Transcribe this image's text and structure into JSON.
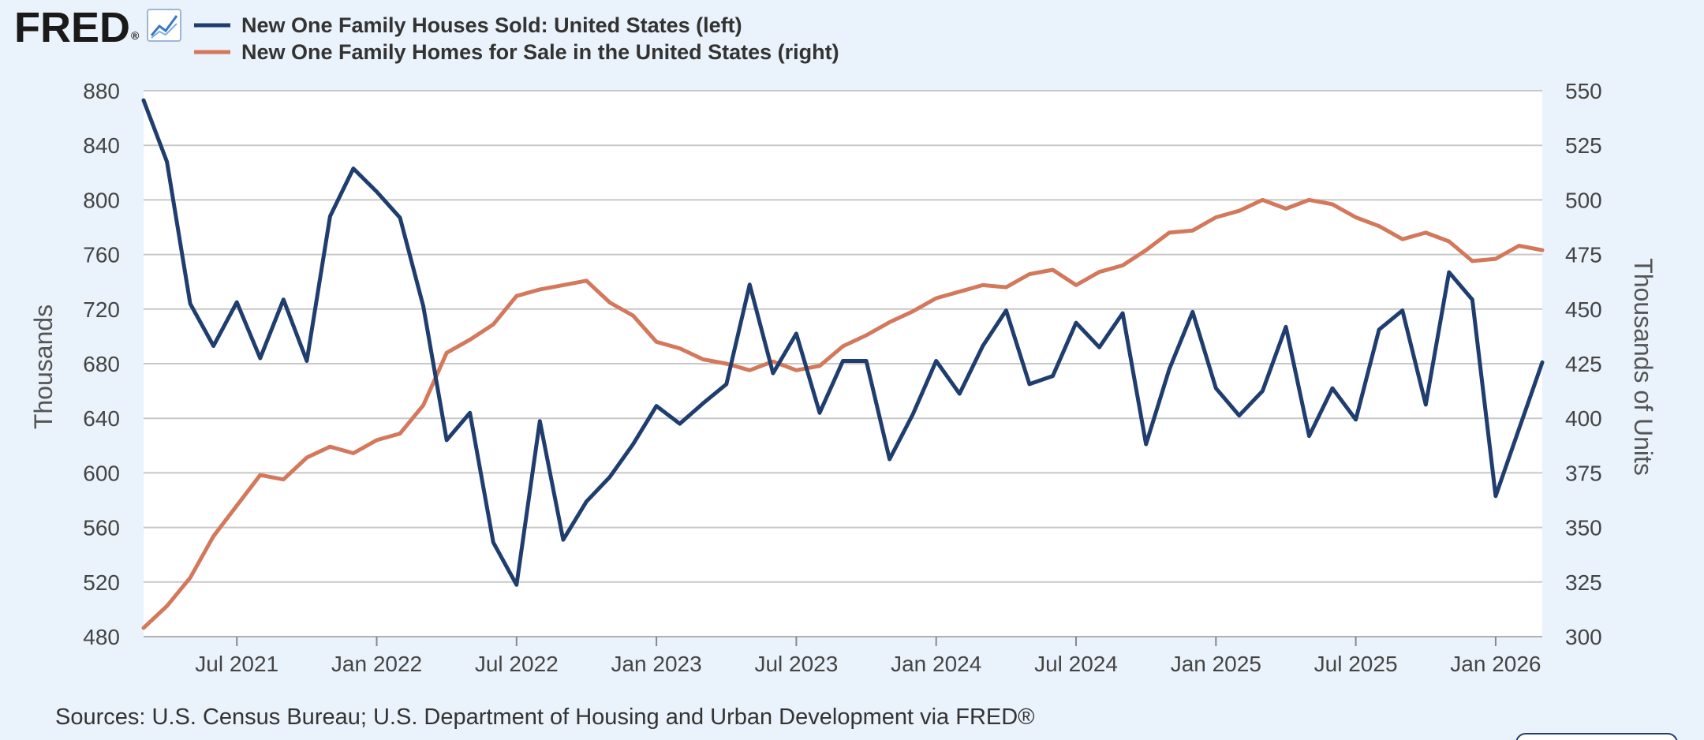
{
  "logo": {
    "text": "FRED",
    "registered": "®",
    "icon": "line-chart-icon"
  },
  "colors": {
    "background": "#eaf2fb",
    "plot": "#ffffff",
    "grid": "#c8c8c8",
    "series1": "#1f3d6e",
    "series2": "#d4785c"
  },
  "source_text": "Sources: U.S. Census Bureau; U.S. Department of Housing and Urban Development via FRED®",
  "chart_data": {
    "type": "line",
    "title": "",
    "legend_placement": "top-left",
    "grid": true,
    "x_start": "2021-03",
    "x_end": "2026-03",
    "x_tick_labels": [
      "Jul 2021",
      "Jan 2022",
      "Jul 2022",
      "Jan 2023",
      "Jul 2023",
      "Jan 2024",
      "Jul 2024",
      "Jan 2025",
      "Jul 2025",
      "Jan 2026"
    ],
    "x_ticks": [
      "2021-07",
      "2022-01",
      "2022-07",
      "2023-01",
      "2023-07",
      "2024-01",
      "2024-07",
      "2025-01",
      "2025-07",
      "2026-01"
    ],
    "y_left": {
      "label": "Thousands",
      "range": [
        480,
        880
      ],
      "ticks": [
        480,
        520,
        560,
        600,
        640,
        680,
        720,
        760,
        800,
        840,
        880
      ]
    },
    "y_right": {
      "label": "Thousands of Units",
      "range": [
        300,
        550
      ],
      "ticks": [
        300,
        325,
        350,
        375,
        400,
        425,
        450,
        475,
        500,
        525,
        550
      ]
    },
    "series": [
      {
        "name": "New One Family Houses Sold: United States (left)",
        "axis": "left",
        "values": [
          {
            "x": "2021-03",
            "y": 873
          },
          {
            "x": "2021-04",
            "y": 828
          },
          {
            "x": "2021-05",
            "y": 724
          },
          {
            "x": "2021-06",
            "y": 693
          },
          {
            "x": "2021-07",
            "y": 725
          },
          {
            "x": "2021-08",
            "y": 684
          },
          {
            "x": "2021-09",
            "y": 727
          },
          {
            "x": "2021-10",
            "y": 682
          },
          {
            "x": "2021-11",
            "y": 788
          },
          {
            "x": "2021-12",
            "y": 823
          },
          {
            "x": "2022-01",
            "y": 806
          },
          {
            "x": "2022-02",
            "y": 787
          },
          {
            "x": "2022-03",
            "y": 722
          },
          {
            "x": "2022-04",
            "y": 624
          },
          {
            "x": "2022-05",
            "y": 644
          },
          {
            "x": "2022-06",
            "y": 549
          },
          {
            "x": "2022-07",
            "y": 518
          },
          {
            "x": "2022-08",
            "y": 638
          },
          {
            "x": "2022-09",
            "y": 551
          },
          {
            "x": "2022-10",
            "y": 579
          },
          {
            "x": "2022-11",
            "y": 597
          },
          {
            "x": "2022-12",
            "y": 621
          },
          {
            "x": "2023-01",
            "y": 649
          },
          {
            "x": "2023-02",
            "y": 636
          },
          {
            "x": "2023-03",
            "y": 651
          },
          {
            "x": "2023-04",
            "y": 665
          },
          {
            "x": "2023-05",
            "y": 738
          },
          {
            "x": "2023-06",
            "y": 673
          },
          {
            "x": "2023-07",
            "y": 702
          },
          {
            "x": "2023-08",
            "y": 644
          },
          {
            "x": "2023-09",
            "y": 682
          },
          {
            "x": "2023-10",
            "y": 682
          },
          {
            "x": "2023-11",
            "y": 610
          },
          {
            "x": "2023-12",
            "y": 643
          },
          {
            "x": "2024-01",
            "y": 682
          },
          {
            "x": "2024-02",
            "y": 658
          },
          {
            "x": "2024-03",
            "y": 693
          },
          {
            "x": "2024-04",
            "y": 719
          },
          {
            "x": "2024-05",
            "y": 665
          },
          {
            "x": "2024-06",
            "y": 671
          },
          {
            "x": "2024-07",
            "y": 710
          },
          {
            "x": "2024-08",
            "y": 692
          },
          {
            "x": "2024-09",
            "y": 717
          },
          {
            "x": "2024-10",
            "y": 621
          },
          {
            "x": "2024-11",
            "y": 676
          },
          {
            "x": "2024-12",
            "y": 718
          },
          {
            "x": "2025-01",
            "y": 662
          },
          {
            "x": "2025-02",
            "y": 642
          },
          {
            "x": "2025-03",
            "y": 660
          },
          {
            "x": "2025-04",
            "y": 707
          },
          {
            "x": "2025-05",
            "y": 627
          },
          {
            "x": "2025-06",
            "y": 662
          },
          {
            "x": "2025-07",
            "y": 639
          },
          {
            "x": "2025-08",
            "y": 705
          },
          {
            "x": "2025-09",
            "y": 719
          },
          {
            "x": "2025-10",
            "y": 650
          },
          {
            "x": "2025-11",
            "y": 747
          },
          {
            "x": "2025-12",
            "y": 727
          },
          {
            "x": "2026-01",
            "y": 583
          },
          {
            "x": "2026-02",
            "y": 632
          },
          {
            "x": "2026-03",
            "y": 681
          }
        ]
      },
      {
        "name": "New One Family Homes for Sale in the United States (right)",
        "axis": "right",
        "values": [
          {
            "x": "2021-03",
            "y": 304
          },
          {
            "x": "2021-04",
            "y": 314
          },
          {
            "x": "2021-05",
            "y": 327
          },
          {
            "x": "2021-06",
            "y": 346
          },
          {
            "x": "2021-07",
            "y": 360
          },
          {
            "x": "2021-08",
            "y": 374
          },
          {
            "x": "2021-09",
            "y": 372
          },
          {
            "x": "2021-10",
            "y": 382
          },
          {
            "x": "2021-11",
            "y": 387
          },
          {
            "x": "2021-12",
            "y": 384
          },
          {
            "x": "2022-01",
            "y": 390
          },
          {
            "x": "2022-02",
            "y": 393
          },
          {
            "x": "2022-03",
            "y": 406
          },
          {
            "x": "2022-04",
            "y": 430
          },
          {
            "x": "2022-05",
            "y": 436
          },
          {
            "x": "2022-06",
            "y": 443
          },
          {
            "x": "2022-07",
            "y": 456
          },
          {
            "x": "2022-08",
            "y": 459
          },
          {
            "x": "2022-09",
            "y": 461
          },
          {
            "x": "2022-10",
            "y": 463
          },
          {
            "x": "2022-11",
            "y": 453
          },
          {
            "x": "2022-12",
            "y": 447
          },
          {
            "x": "2023-01",
            "y": 435
          },
          {
            "x": "2023-02",
            "y": 432
          },
          {
            "x": "2023-03",
            "y": 427
          },
          {
            "x": "2023-04",
            "y": 425
          },
          {
            "x": "2023-05",
            "y": 422
          },
          {
            "x": "2023-06",
            "y": 426
          },
          {
            "x": "2023-07",
            "y": 422
          },
          {
            "x": "2023-08",
            "y": 424
          },
          {
            "x": "2023-09",
            "y": 433
          },
          {
            "x": "2023-10",
            "y": 438
          },
          {
            "x": "2023-11",
            "y": 444
          },
          {
            "x": "2023-12",
            "y": 449
          },
          {
            "x": "2024-01",
            "y": 455
          },
          {
            "x": "2024-02",
            "y": 458
          },
          {
            "x": "2024-03",
            "y": 461
          },
          {
            "x": "2024-04",
            "y": 460
          },
          {
            "x": "2024-05",
            "y": 466
          },
          {
            "x": "2024-06",
            "y": 468
          },
          {
            "x": "2024-07",
            "y": 461
          },
          {
            "x": "2024-08",
            "y": 467
          },
          {
            "x": "2024-09",
            "y": 470
          },
          {
            "x": "2024-10",
            "y": 477
          },
          {
            "x": "2024-11",
            "y": 485
          },
          {
            "x": "2024-12",
            "y": 486
          },
          {
            "x": "2025-01",
            "y": 492
          },
          {
            "x": "2025-02",
            "y": 495
          },
          {
            "x": "2025-03",
            "y": 500
          },
          {
            "x": "2025-04",
            "y": 496
          },
          {
            "x": "2025-05",
            "y": 500
          },
          {
            "x": "2025-06",
            "y": 498
          },
          {
            "x": "2025-07",
            "y": 492
          },
          {
            "x": "2025-08",
            "y": 488
          },
          {
            "x": "2025-09",
            "y": 482
          },
          {
            "x": "2025-10",
            "y": 485
          },
          {
            "x": "2025-11",
            "y": 481
          },
          {
            "x": "2025-12",
            "y": 472
          },
          {
            "x": "2026-01",
            "y": 473
          },
          {
            "x": "2026-02",
            "y": 479
          },
          {
            "x": "2026-03",
            "y": 477
          }
        ]
      }
    ]
  }
}
